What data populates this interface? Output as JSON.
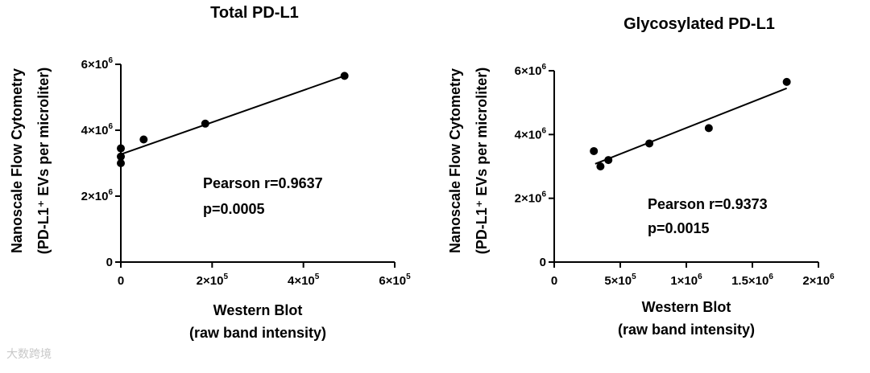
{
  "watermark": "大数跨境",
  "chart_data": [
    {
      "type": "scatter",
      "title": "Total PD-L1",
      "xlabel_line1": "Western  Blot",
      "xlabel_line2": "(raw band intensity)",
      "ylabel_line1": "Nanoscale  Flow Cytometry",
      "ylabel_line2": "(PD-L1⁺ EVs per microliter)",
      "xlim": [
        0,
        600000
      ],
      "ylim": [
        0,
        6000000
      ],
      "x_ticks": [
        {
          "value": 0,
          "label": "0",
          "exp": ""
        },
        {
          "value": 200000,
          "label": "2×10",
          "exp": "5"
        },
        {
          "value": 400000,
          "label": "4×10",
          "exp": "5"
        },
        {
          "value": 600000,
          "label": "6×10",
          "exp": "5"
        }
      ],
      "y_ticks": [
        {
          "value": 0,
          "label": "0",
          "exp": ""
        },
        {
          "value": 2000000,
          "label": "2×10",
          "exp": "6"
        },
        {
          "value": 4000000,
          "label": "4×10",
          "exp": "6"
        },
        {
          "value": 6000000,
          "label": "6×10",
          "exp": "6"
        }
      ],
      "points": [
        {
          "x": 0,
          "y": 3450000
        },
        {
          "x": 0,
          "y": 3200000
        },
        {
          "x": 0,
          "y": 3000000
        },
        {
          "x": 50000,
          "y": 3720000
        },
        {
          "x": 185000,
          "y": 4200000
        },
        {
          "x": 490000,
          "y": 5650000
        }
      ],
      "fit_line": {
        "x": [
          0,
          490000
        ],
        "y": [
          3270000,
          5650000
        ]
      },
      "annotation_line1": "Pearson r=0.9637",
      "annotation_line2": "p=0.0005"
    },
    {
      "type": "scatter",
      "title": "Glycosylated PD-L1",
      "xlabel_line1": "Western  Blot",
      "xlabel_line2": "(raw band intensity)",
      "ylabel_line1": "Nanoscale  Flow Cytometry",
      "ylabel_line2": "(PD-L1⁺ EVs per microliter)",
      "xlim": [
        0,
        2000000
      ],
      "ylim": [
        0,
        6000000
      ],
      "x_ticks": [
        {
          "value": 0,
          "label": "0",
          "exp": ""
        },
        {
          "value": 500000,
          "label": "5×10",
          "exp": "5"
        },
        {
          "value": 1000000,
          "label": "1×10",
          "exp": "6"
        },
        {
          "value": 1500000,
          "label": "1.5×10",
          "exp": "6"
        },
        {
          "value": 2000000,
          "label": "2×10",
          "exp": "6"
        }
      ],
      "y_ticks": [
        {
          "value": 0,
          "label": "0",
          "exp": ""
        },
        {
          "value": 2000000,
          "label": "2×10",
          "exp": "6"
        },
        {
          "value": 4000000,
          "label": "4×10",
          "exp": "6"
        },
        {
          "value": 6000000,
          "label": "6×10",
          "exp": "6"
        }
      ],
      "points": [
        {
          "x": 300000,
          "y": 3480000
        },
        {
          "x": 350000,
          "y": 3000000
        },
        {
          "x": 410000,
          "y": 3200000
        },
        {
          "x": 720000,
          "y": 3720000
        },
        {
          "x": 1170000,
          "y": 4200000
        },
        {
          "x": 1760000,
          "y": 5650000
        }
      ],
      "fit_line": {
        "x": [
          310000,
          1760000
        ],
        "y": [
          3080000,
          5450000
        ]
      },
      "annotation_line1": "Pearson r=0.9373",
      "annotation_line2": "p=0.0015"
    }
  ]
}
